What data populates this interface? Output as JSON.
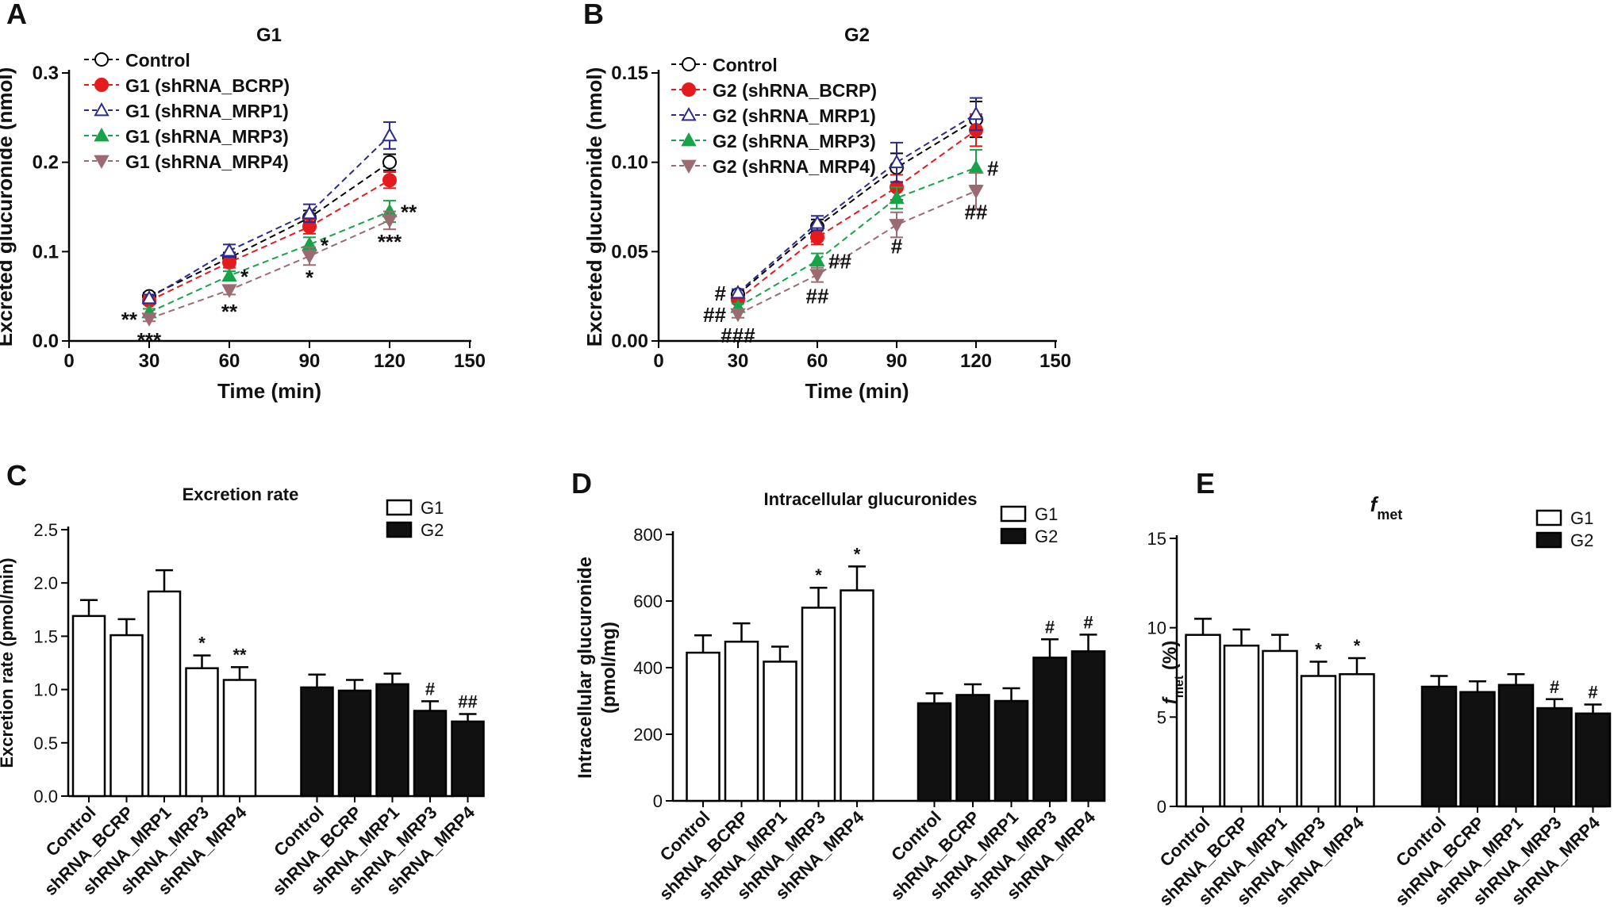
{
  "colors": {
    "control": "#000000",
    "bcrp": "#e41a1c",
    "mrp1": "#2b2b8f",
    "mrp3": "#17a34a",
    "mrp4": "#9c6b72",
    "bar_g1": "#ffffff",
    "bar_g2": "#111111"
  },
  "chart_data": [
    {
      "panel": "A",
      "type": "line",
      "title": "G1",
      "xlabel": "Time (min)",
      "ylabel": "Excreted glucuronide (nmol)",
      "xlim": [
        0,
        150
      ],
      "ylim": [
        0,
        0.3
      ],
      "xticks": [
        "0",
        "30",
        "60",
        "90",
        "120",
        "150"
      ],
      "yticks": [
        "0.0",
        "0.1",
        "0.2",
        "0.3"
      ],
      "x": [
        30,
        60,
        90,
        120
      ],
      "series": [
        {
          "key": "control",
          "name": "Control",
          "marker": "circle-open",
          "values": [
            0.05,
            0.093,
            0.138,
            0.2
          ],
          "err": [
            0.004,
            0.006,
            0.008,
            0.009
          ]
        },
        {
          "key": "bcrp",
          "name": "G1 (shRNA_BCRP)",
          "marker": "circle",
          "values": [
            0.045,
            0.088,
            0.128,
            0.18
          ],
          "err": [
            0.004,
            0.006,
            0.008,
            0.009
          ]
        },
        {
          "key": "mrp1",
          "name": "G1 (shRNA_MRP1)",
          "marker": "triangle-open",
          "values": [
            0.048,
            0.101,
            0.143,
            0.23
          ],
          "err": [
            0.004,
            0.007,
            0.01,
            0.015
          ]
        },
        {
          "key": "mrp3",
          "name": "G1 (shRNA_MRP3)",
          "marker": "triangle",
          "values": [
            0.032,
            0.073,
            0.108,
            0.145
          ],
          "err": [
            0.004,
            0.005,
            0.008,
            0.012
          ]
        },
        {
          "key": "mrp4",
          "name": "G1 (shRNA_MRP4)",
          "marker": "triangle-down",
          "values": [
            0.025,
            0.057,
            0.095,
            0.135
          ],
          "err": [
            0.003,
            0.005,
            0.01,
            0.01
          ]
        }
      ],
      "annotations": [
        {
          "text": "**",
          "x": 30,
          "y": 0.025,
          "pos": "left"
        },
        {
          "text": "***",
          "x": 30,
          "y": 0.025,
          "pos": "below"
        },
        {
          "text": "*",
          "x": 60,
          "y": 0.073,
          "pos": "right"
        },
        {
          "text": "**",
          "x": 60,
          "y": 0.057,
          "pos": "below"
        },
        {
          "text": "*",
          "x": 90,
          "y": 0.108,
          "pos": "right"
        },
        {
          "text": "*",
          "x": 90,
          "y": 0.095,
          "pos": "below"
        },
        {
          "text": "**",
          "x": 120,
          "y": 0.145,
          "pos": "right"
        },
        {
          "text": "***",
          "x": 120,
          "y": 0.135,
          "pos": "below"
        }
      ]
    },
    {
      "panel": "B",
      "type": "line",
      "title": "G2",
      "xlabel": "Time (min)",
      "ylabel": "Excreted glucuronide (nmol)",
      "xlim": [
        0,
        150
      ],
      "ylim": [
        0,
        0.15
      ],
      "xticks": [
        "0",
        "30",
        "60",
        "90",
        "120",
        "150"
      ],
      "yticks": [
        "0.00",
        "0.05",
        "0.10",
        "0.15"
      ],
      "x": [
        30,
        60,
        90,
        120
      ],
      "series": [
        {
          "key": "control",
          "name": "Control",
          "marker": "circle-open",
          "values": [
            0.026,
            0.064,
            0.097,
            0.124
          ],
          "err": [
            0.002,
            0.004,
            0.008,
            0.01
          ]
        },
        {
          "key": "bcrp",
          "name": "G2 (shRNA_BCRP)",
          "marker": "circle",
          "values": [
            0.023,
            0.058,
            0.086,
            0.118
          ],
          "err": [
            0.002,
            0.004,
            0.007,
            0.009
          ]
        },
        {
          "key": "mrp1",
          "name": "G2 (shRNA_MRP1)",
          "marker": "triangle-open",
          "values": [
            0.027,
            0.066,
            0.1,
            0.127
          ],
          "err": [
            0.002,
            0.004,
            0.011,
            0.009
          ]
        },
        {
          "key": "mrp3",
          "name": "G2 (shRNA_MRP3)",
          "marker": "triangle",
          "values": [
            0.019,
            0.045,
            0.08,
            0.097
          ],
          "err": [
            0.002,
            0.004,
            0.006,
            0.01
          ]
        },
        {
          "key": "mrp4",
          "name": "G2 (shRNA_MRP4)",
          "marker": "triangle-down",
          "values": [
            0.015,
            0.037,
            0.065,
            0.084
          ],
          "err": [
            0.002,
            0.004,
            0.007,
            0.01
          ]
        }
      ],
      "annotations": [
        {
          "text": "#",
          "x": 30,
          "y": 0.019,
          "pos": "left-up"
        },
        {
          "text": "##",
          "x": 30,
          "y": 0.015,
          "pos": "left"
        },
        {
          "text": "###",
          "x": 30,
          "y": 0.015,
          "pos": "below"
        },
        {
          "text": "##",
          "x": 60,
          "y": 0.045,
          "pos": "right"
        },
        {
          "text": "##",
          "x": 60,
          "y": 0.037,
          "pos": "below"
        },
        {
          "text": "#",
          "x": 90,
          "y": 0.065,
          "pos": "below"
        },
        {
          "text": "#",
          "x": 120,
          "y": 0.097,
          "pos": "right"
        },
        {
          "text": "##",
          "x": 120,
          "y": 0.084,
          "pos": "below"
        }
      ]
    },
    {
      "panel": "C",
      "type": "bar",
      "title": "Excretion rate",
      "ylabel": "Excretion rate (pmol/min)",
      "ylim": [
        0,
        2.5
      ],
      "yticks": [
        "0.0",
        "0.5",
        "1.0",
        "1.5",
        "2.0",
        "2.5"
      ],
      "categories": [
        "Control",
        "shRNA_BCRP",
        "shRNA_MRP1",
        "shRNA_MRP3",
        "shRNA_MRP4"
      ],
      "series": [
        {
          "name": "G1",
          "values": [
            1.69,
            1.51,
            1.92,
            1.2,
            1.09
          ],
          "err": [
            0.15,
            0.15,
            0.2,
            0.12,
            0.12
          ],
          "marks": [
            "",
            "",
            "",
            "*",
            "**"
          ]
        },
        {
          "name": "G2",
          "values": [
            1.02,
            0.99,
            1.05,
            0.8,
            0.7
          ],
          "err": [
            0.12,
            0.1,
            0.1,
            0.09,
            0.07
          ],
          "marks": [
            "",
            "",
            "",
            "#",
            "##"
          ]
        }
      ]
    },
    {
      "panel": "D",
      "type": "bar",
      "title": "Intracellular glucuronides",
      "ylabel": "Intracellular glucuronide (pmol/mg)",
      "ylim": [
        0,
        800
      ],
      "yticks": [
        "0",
        "200",
        "400",
        "600",
        "800"
      ],
      "categories": [
        "Control",
        "shRNA_BCRP",
        "shRNA_MRP1",
        "shRNA_MRP3",
        "shRNA_MRP4"
      ],
      "series": [
        {
          "name": "G1",
          "values": [
            445,
            478,
            418,
            580,
            632
          ],
          "err": [
            52,
            55,
            45,
            60,
            72
          ],
          "marks": [
            "",
            "",
            "",
            "*",
            "*"
          ]
        },
        {
          "name": "G2",
          "values": [
            293,
            318,
            300,
            430,
            449
          ],
          "err": [
            30,
            32,
            38,
            55,
            50
          ],
          "marks": [
            "",
            "",
            "",
            "#",
            "#"
          ]
        }
      ]
    },
    {
      "panel": "E",
      "type": "bar",
      "title": "f",
      "title_sub": "met",
      "ylabel": "f",
      "ylabel_sub": "met",
      "ylabel_tail": " (%)",
      "ylim": [
        0,
        15
      ],
      "yticks": [
        "0",
        "5",
        "10",
        "15"
      ],
      "categories": [
        "Control",
        "shRNA_BCRP",
        "shRNA_MRP1",
        "shRNA_MRP3",
        "shRNA_MRP4"
      ],
      "series": [
        {
          "name": "G1",
          "values": [
            9.6,
            9.0,
            8.7,
            7.3,
            7.4
          ],
          "err": [
            0.9,
            0.9,
            0.9,
            0.8,
            0.9
          ],
          "marks": [
            "",
            "",
            "",
            "*",
            "*"
          ]
        },
        {
          "name": "G2",
          "values": [
            6.7,
            6.4,
            6.8,
            5.5,
            5.2
          ],
          "err": [
            0.6,
            0.6,
            0.6,
            0.5,
            0.5
          ],
          "marks": [
            "",
            "",
            "",
            "#",
            "#"
          ]
        }
      ]
    }
  ]
}
